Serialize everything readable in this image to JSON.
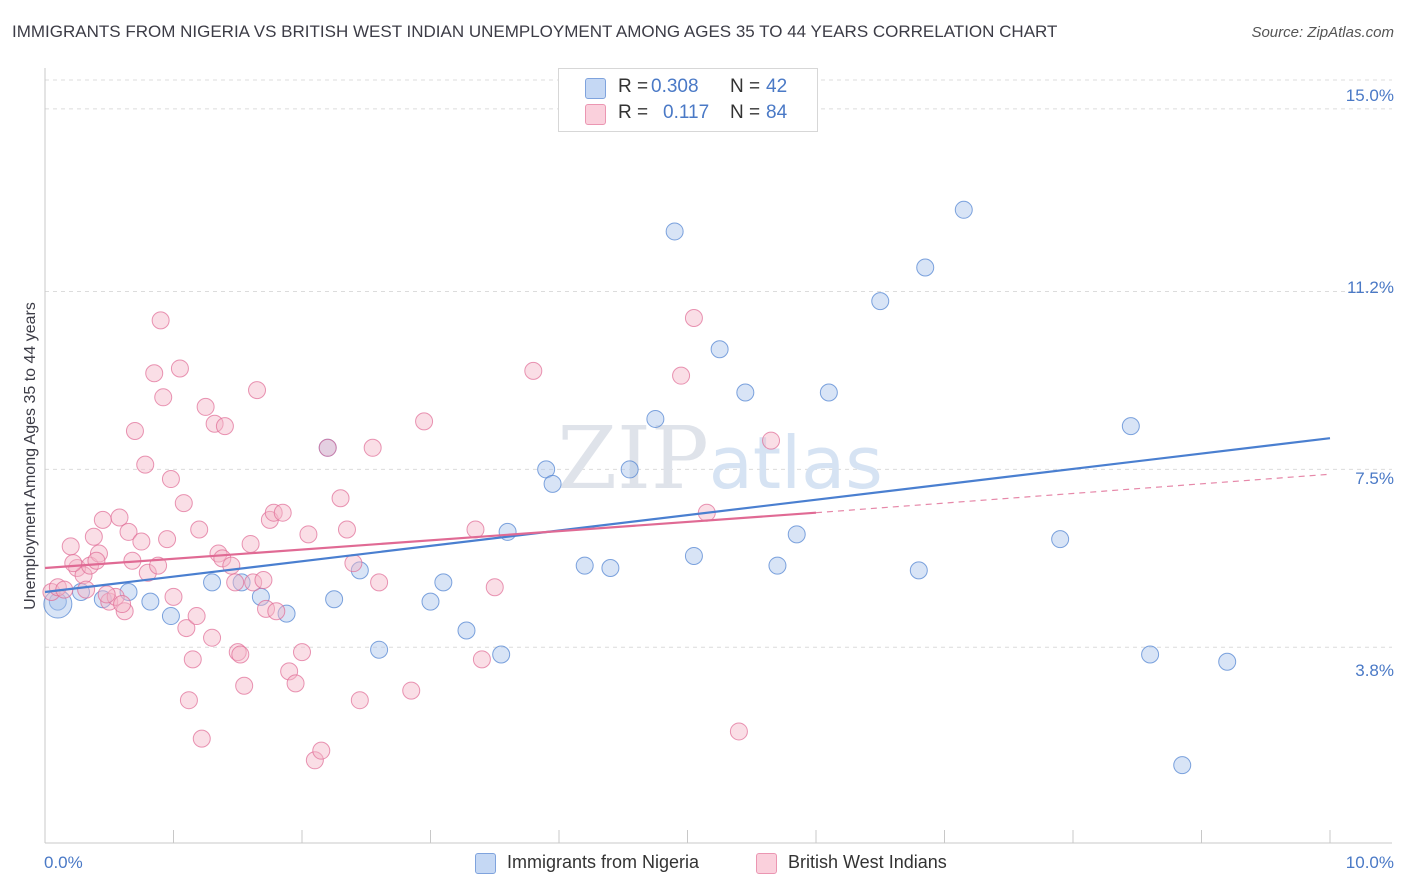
{
  "title": "IMMIGRANTS FROM NIGERIA VS BRITISH WEST INDIAN UNEMPLOYMENT AMONG AGES 35 TO 44 YEARS CORRELATION CHART",
  "source": "Source: ZipAtlas.com",
  "watermark": "ZIPatlas",
  "legend": {
    "rows": [
      {
        "r_label": "R =",
        "r_value": "0.308",
        "n_label": "N =",
        "n_value": "42",
        "color": "#a8c4ec"
      },
      {
        "r_label": "R =",
        "r_value": "0.117",
        "n_label": "N =",
        "n_value": "84",
        "color": "#f4b6c8"
      }
    ]
  },
  "bottom_legend": [
    {
      "label": "Immigrants from Nigeria",
      "color": "#a8c4ec"
    },
    {
      "label": "British West Indians",
      "color": "#f4b6c8"
    }
  ],
  "chart_data": {
    "type": "scatter",
    "ylabel": "Unemployment Among Ages 35 to 44 years",
    "xlabel": "",
    "xlim": [
      0,
      10
    ],
    "ylim": [
      0,
      15.6
    ],
    "x_tick_labels": [
      "0.0%",
      "10.0%"
    ],
    "y_ticks": [
      3.8,
      7.5,
      11.2,
      15.0
    ],
    "y_tick_labels": [
      "3.8%",
      "7.5%",
      "11.2%",
      "15.0%"
    ],
    "grid": true,
    "series": [
      {
        "name": "Immigrants from Nigeria",
        "color": "#4a7fd0",
        "fill": "#a8c4ec",
        "points": [
          [
            0.1,
            4.75
          ],
          [
            0.28,
            4.95
          ],
          [
            0.45,
            4.8
          ],
          [
            0.65,
            4.95
          ],
          [
            0.82,
            4.75
          ],
          [
            0.98,
            4.45
          ],
          [
            1.3,
            5.15
          ],
          [
            1.53,
            5.15
          ],
          [
            1.68,
            4.85
          ],
          [
            1.88,
            4.5
          ],
          [
            2.2,
            7.95
          ],
          [
            2.25,
            4.8
          ],
          [
            2.45,
            5.4
          ],
          [
            2.6,
            3.75
          ],
          [
            3.0,
            4.75
          ],
          [
            3.1,
            5.15
          ],
          [
            3.28,
            4.15
          ],
          [
            3.55,
            3.65
          ],
          [
            3.6,
            6.2
          ],
          [
            3.9,
            7.5
          ],
          [
            3.95,
            7.2
          ],
          [
            4.2,
            5.5
          ],
          [
            4.4,
            5.45
          ],
          [
            4.55,
            7.5
          ],
          [
            4.75,
            8.55
          ],
          [
            4.9,
            12.45
          ],
          [
            5.05,
            5.7
          ],
          [
            5.25,
            10.0
          ],
          [
            5.45,
            9.1
          ],
          [
            5.7,
            5.5
          ],
          [
            5.85,
            6.15
          ],
          [
            6.1,
            9.1
          ],
          [
            6.5,
            11.0
          ],
          [
            6.8,
            5.4
          ],
          [
            6.85,
            11.7
          ],
          [
            7.15,
            12.9
          ],
          [
            7.9,
            6.05
          ],
          [
            8.45,
            8.4
          ],
          [
            8.6,
            3.65
          ],
          [
            8.85,
            1.35
          ],
          [
            9.2,
            3.5
          ],
          [
            0.1,
            4.7
          ]
        ],
        "trend": [
          [
            0.0,
            4.95
          ],
          [
            10.0,
            8.15
          ]
        ]
      },
      {
        "name": "British West Indians",
        "color": "#e06a94",
        "fill": "#f4b6c8",
        "points": [
          [
            0.05,
            4.95
          ],
          [
            0.1,
            5.05
          ],
          [
            0.15,
            5.0
          ],
          [
            0.2,
            5.9
          ],
          [
            0.25,
            5.45
          ],
          [
            0.3,
            5.3
          ],
          [
            0.35,
            5.5
          ],
          [
            0.38,
            6.1
          ],
          [
            0.42,
            5.75
          ],
          [
            0.45,
            6.45
          ],
          [
            0.5,
            4.75
          ],
          [
            0.55,
            4.85
          ],
          [
            0.58,
            6.5
          ],
          [
            0.62,
            4.55
          ],
          [
            0.65,
            6.2
          ],
          [
            0.68,
            5.6
          ],
          [
            0.7,
            8.3
          ],
          [
            0.75,
            6.0
          ],
          [
            0.78,
            7.6
          ],
          [
            0.8,
            5.35
          ],
          [
            0.85,
            9.5
          ],
          [
            0.88,
            5.5
          ],
          [
            0.9,
            10.6
          ],
          [
            0.92,
            9.0
          ],
          [
            0.95,
            6.05
          ],
          [
            0.98,
            7.3
          ],
          [
            1.0,
            4.85
          ],
          [
            1.05,
            9.6
          ],
          [
            1.08,
            6.8
          ],
          [
            1.1,
            4.2
          ],
          [
            1.15,
            3.55
          ],
          [
            1.18,
            4.45
          ],
          [
            1.2,
            6.25
          ],
          [
            1.22,
            1.9
          ],
          [
            1.25,
            8.8
          ],
          [
            1.3,
            4.0
          ],
          [
            1.32,
            8.45
          ],
          [
            1.35,
            5.75
          ],
          [
            1.38,
            5.65
          ],
          [
            1.4,
            8.4
          ],
          [
            1.45,
            5.5
          ],
          [
            1.48,
            5.15
          ],
          [
            1.5,
            3.7
          ],
          [
            1.52,
            3.65
          ],
          [
            1.55,
            3.0
          ],
          [
            1.6,
            5.95
          ],
          [
            1.62,
            5.15
          ],
          [
            1.65,
            9.15
          ],
          [
            1.7,
            5.2
          ],
          [
            1.72,
            4.6
          ],
          [
            1.75,
            6.45
          ],
          [
            1.78,
            6.6
          ],
          [
            1.8,
            4.55
          ],
          [
            1.85,
            6.6
          ],
          [
            1.9,
            3.3
          ],
          [
            1.95,
            3.05
          ],
          [
            2.0,
            3.7
          ],
          [
            2.05,
            6.15
          ],
          [
            2.1,
            1.45
          ],
          [
            2.15,
            1.65
          ],
          [
            2.2,
            7.95
          ],
          [
            2.3,
            6.9
          ],
          [
            2.35,
            6.25
          ],
          [
            2.4,
            5.55
          ],
          [
            2.45,
            2.7
          ],
          [
            2.55,
            7.95
          ],
          [
            2.6,
            5.15
          ],
          [
            2.85,
            2.9
          ],
          [
            2.95,
            8.5
          ],
          [
            3.35,
            6.25
          ],
          [
            3.4,
            3.55
          ],
          [
            3.5,
            5.05
          ],
          [
            3.8,
            9.55
          ],
          [
            4.95,
            9.45
          ],
          [
            5.05,
            10.65
          ],
          [
            5.15,
            6.6
          ],
          [
            5.4,
            2.05
          ],
          [
            5.65,
            8.1
          ],
          [
            0.22,
            5.55
          ],
          [
            0.32,
            5.0
          ],
          [
            0.48,
            4.9
          ],
          [
            0.6,
            4.7
          ],
          [
            1.12,
            2.7
          ],
          [
            0.4,
            5.6
          ]
        ],
        "trend": [
          [
            0.0,
            5.45
          ],
          [
            6.0,
            6.6
          ]
        ],
        "trend_dashed": [
          [
            6.0,
            6.6
          ],
          [
            10.0,
            7.4
          ]
        ]
      }
    ]
  }
}
